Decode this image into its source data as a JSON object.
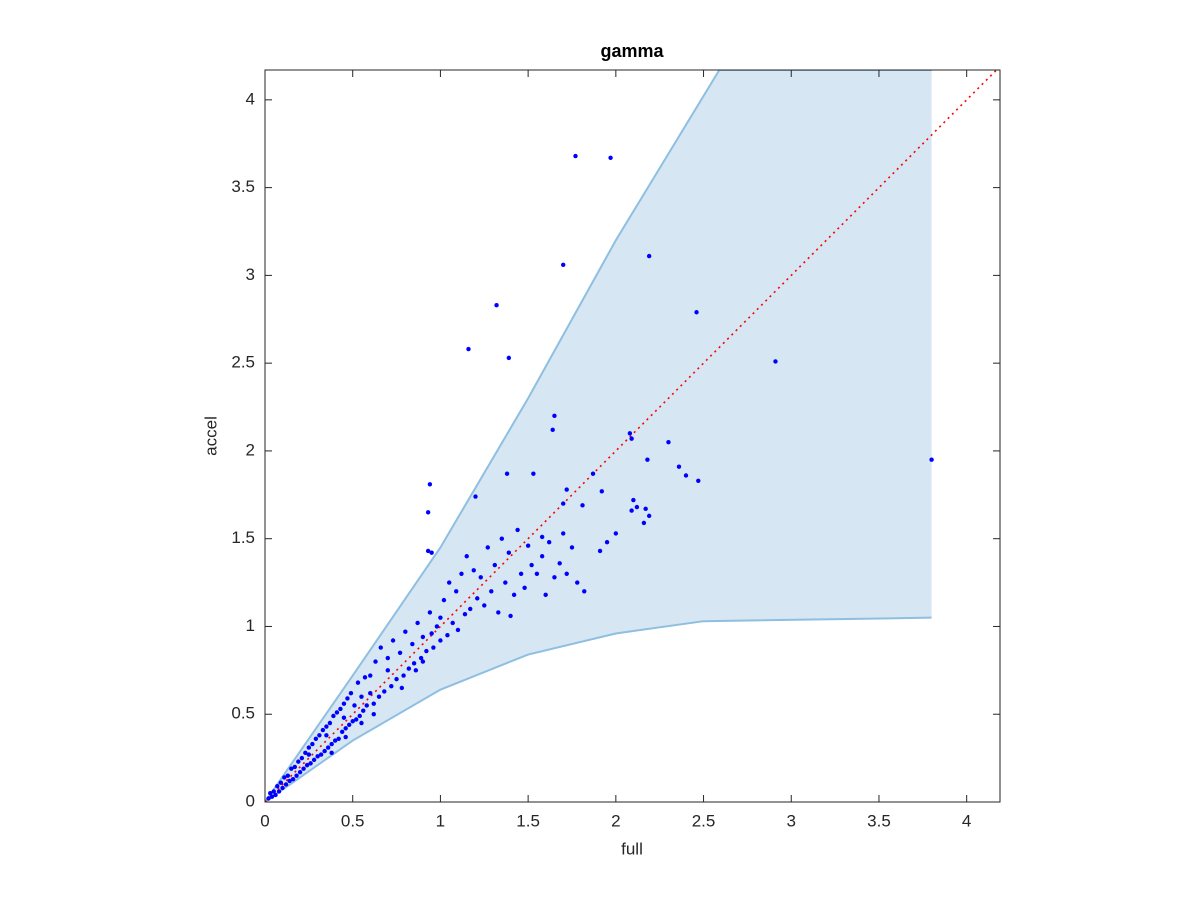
{
  "chart_data": {
    "type": "scatter",
    "title": "gamma",
    "x_label": "full",
    "y_label": "accel",
    "xlim": [
      0,
      4.19
    ],
    "ylim": [
      0,
      4.17
    ],
    "xticks": [
      0,
      0.5,
      1,
      1.5,
      2,
      2.5,
      3,
      3.5,
      4
    ],
    "yticks": [
      0,
      0.5,
      1,
      1.5,
      2,
      2.5,
      3,
      3.5,
      4
    ],
    "band": {
      "color": "#d6e6f3",
      "edge_color": "#8ebfe0",
      "upper": {
        "x": [
          0,
          0.5,
          1,
          1.5,
          2,
          2.59,
          3.8
        ],
        "y": [
          0,
          0.72,
          1.45,
          2.3,
          3.2,
          4.17,
          4.17
        ]
      },
      "lower": {
        "x": [
          0,
          0.5,
          1,
          1.5,
          2,
          2.5,
          3.8
        ],
        "y": [
          0,
          0.35,
          0.64,
          0.84,
          0.96,
          1.03,
          1.05
        ]
      }
    },
    "reference_line": {
      "color": "#ff0000",
      "x": [
        0,
        4.19
      ],
      "y": [
        0,
        4.19
      ]
    },
    "series": [
      {
        "color": "#0000ff",
        "x": [
          1.77,
          1.97,
          1.7,
          2.19,
          1.32,
          2.46,
          1.16,
          1.39,
          2.91,
          3.8,
          1.65,
          1.64,
          2.08,
          2.09,
          2.3,
          2.18,
          2.36,
          2.4,
          2.47,
          0.94,
          0.93,
          1.38,
          1.53,
          1.87,
          1.92,
          1.72,
          1.2,
          1.7,
          1.81,
          2.1,
          2.12,
          2.09,
          2.17,
          2.16,
          2.19,
          1.82,
          1.95,
          2.0,
          1.91,
          1.58,
          1.7,
          0.93,
          0.95,
          1.4,
          0.02,
          0.03,
          0.04,
          0.05,
          0.06,
          0.07,
          0.08,
          0.09,
          0.1,
          0.11,
          0.12,
          0.13,
          0.14,
          0.15,
          0.16,
          0.17,
          0.18,
          0.19,
          0.2,
          0.21,
          0.22,
          0.23,
          0.24,
          0.25,
          0.26,
          0.27,
          0.28,
          0.29,
          0.3,
          0.31,
          0.32,
          0.33,
          0.34,
          0.35,
          0.36,
          0.37,
          0.38,
          0.39,
          0.4,
          0.41,
          0.42,
          0.43,
          0.44,
          0.45,
          0.46,
          0.47,
          0.48,
          0.49,
          0.5,
          0.51,
          0.52,
          0.53,
          0.54,
          0.55,
          0.56,
          0.57,
          0.58,
          0.6,
          0.62,
          0.63,
          0.65,
          0.66,
          0.68,
          0.7,
          0.72,
          0.73,
          0.75,
          0.77,
          0.79,
          0.8,
          0.82,
          0.84,
          0.85,
          0.87,
          0.89,
          0.9,
          0.92,
          0.94,
          0.96,
          0.98,
          1.0,
          1.02,
          1.04,
          1.05,
          1.07,
          1.09,
          1.1,
          1.12,
          1.14,
          1.15,
          1.17,
          1.19,
          1.21,
          1.23,
          1.25,
          1.27,
          1.29,
          1.31,
          1.33,
          1.35,
          1.37,
          1.39,
          1.42,
          1.44,
          1.46,
          1.48,
          1.5,
          1.52,
          1.55,
          1.58,
          1.6,
          1.62,
          1.65,
          1.68,
          1.72,
          1.75,
          1.78,
          0.86,
          0.78,
          0.62,
          0.55,
          0.46,
          0.38,
          1.0,
          0.95,
          0.9,
          0.7,
          0.6,
          0.45,
          0.35,
          0.25
        ],
        "values": [
          3.68,
          3.67,
          3.06,
          3.11,
          2.83,
          2.79,
          2.58,
          2.53,
          2.51,
          1.95,
          2.2,
          2.12,
          2.1,
          2.07,
          2.05,
          1.95,
          1.91,
          1.86,
          1.83,
          1.81,
          1.65,
          1.87,
          1.87,
          1.87,
          1.77,
          1.78,
          1.74,
          1.7,
          1.69,
          1.72,
          1.68,
          1.66,
          1.67,
          1.59,
          1.63,
          1.2,
          1.48,
          1.53,
          1.43,
          1.51,
          1.53,
          1.43,
          1.42,
          1.06,
          0.02,
          0.05,
          0.03,
          0.06,
          0.04,
          0.09,
          0.06,
          0.11,
          0.08,
          0.14,
          0.1,
          0.15,
          0.12,
          0.19,
          0.13,
          0.2,
          0.15,
          0.23,
          0.17,
          0.25,
          0.19,
          0.28,
          0.21,
          0.31,
          0.22,
          0.33,
          0.24,
          0.36,
          0.26,
          0.38,
          0.27,
          0.41,
          0.29,
          0.43,
          0.31,
          0.45,
          0.33,
          0.49,
          0.35,
          0.51,
          0.36,
          0.53,
          0.4,
          0.56,
          0.42,
          0.59,
          0.44,
          0.62,
          0.46,
          0.55,
          0.47,
          0.68,
          0.49,
          0.6,
          0.52,
          0.71,
          0.55,
          0.72,
          0.56,
          0.8,
          0.6,
          0.88,
          0.63,
          0.82,
          0.66,
          0.92,
          0.7,
          0.85,
          0.72,
          0.97,
          0.76,
          0.9,
          0.79,
          1.02,
          0.82,
          0.94,
          0.86,
          1.08,
          0.88,
          1.0,
          0.92,
          1.15,
          0.95,
          1.25,
          1.02,
          1.2,
          0.98,
          1.3,
          1.07,
          1.4,
          1.1,
          1.32,
          1.16,
          1.28,
          1.12,
          1.45,
          1.2,
          1.35,
          1.08,
          1.5,
          1.25,
          1.42,
          1.18,
          1.55,
          1.3,
          1.22,
          1.46,
          1.35,
          1.3,
          1.4,
          1.18,
          1.48,
          1.28,
          1.36,
          1.3,
          1.45,
          1.25,
          0.75,
          0.65,
          0.5,
          0.45,
          0.37,
          0.28,
          1.05,
          0.96,
          0.8,
          0.75,
          0.62,
          0.48,
          0.38,
          0.27
        ]
      }
    ]
  }
}
